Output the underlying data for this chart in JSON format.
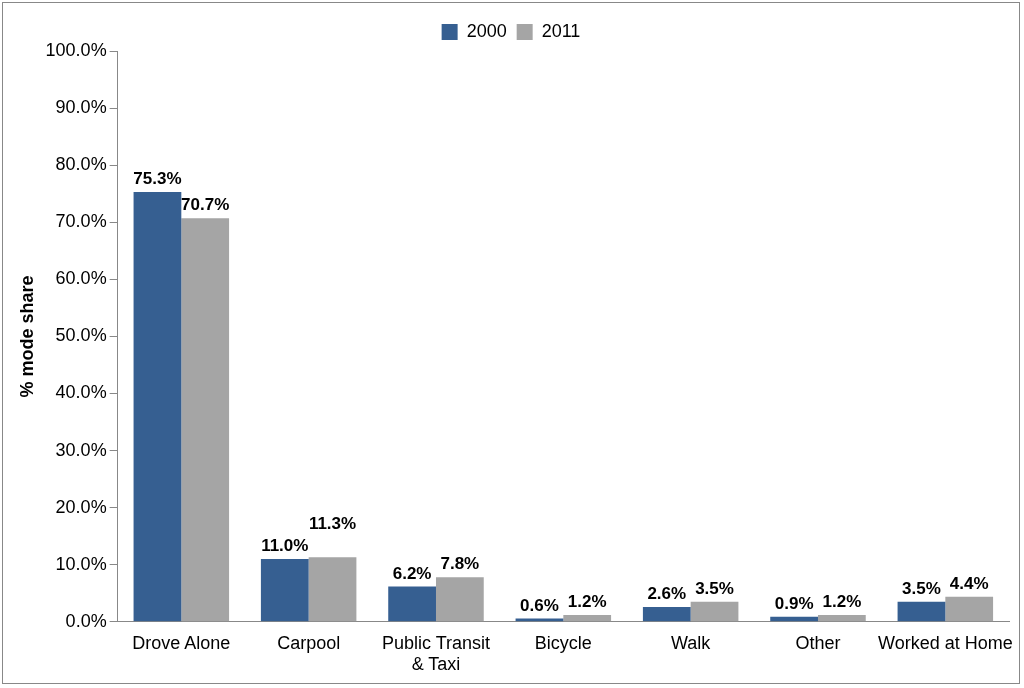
{
  "chart_data": {
    "type": "bar",
    "ylabel": "% mode share",
    "categories": [
      "Drove Alone",
      "Carpool",
      "Public Transit & Taxi",
      "Bicycle",
      "Walk",
      "Other",
      "Worked at Home"
    ],
    "series": [
      {
        "name": "2000",
        "color": "#365f91",
        "values": [
          75.3,
          11.0,
          6.2,
          0.6,
          2.6,
          0.9,
          3.5
        ],
        "value_labels": [
          "75.3%",
          "11.0%",
          "6.2%",
          "0.6%",
          "2.6%",
          "0.9%",
          "3.5%"
        ]
      },
      {
        "name": "2011",
        "color": "#a5a5a5",
        "values": [
          70.7,
          11.3,
          7.8,
          1.2,
          3.5,
          1.2,
          4.4
        ],
        "value_labels": [
          "70.7%",
          "11.3%",
          "7.8%",
          "1.2%",
          "3.5%",
          "1.2%",
          "4.4%"
        ]
      }
    ],
    "ylim": [
      0,
      100
    ],
    "yticks": [
      {
        "value": 0,
        "label": "0.0%"
      },
      {
        "value": 10,
        "label": "10.0%"
      },
      {
        "value": 20,
        "label": "20.0%"
      },
      {
        "value": 30,
        "label": "30.0%"
      },
      {
        "value": 40,
        "label": "40.0%"
      },
      {
        "value": 50,
        "label": "50.0%"
      },
      {
        "value": 60,
        "label": "60.0%"
      },
      {
        "value": 70,
        "label": "70.0%"
      },
      {
        "value": 80,
        "label": "80.0%"
      },
      {
        "value": 90,
        "label": "90.0%"
      },
      {
        "value": 100,
        "label": "100.0%"
      }
    ],
    "grid": false,
    "legend": "top"
  }
}
